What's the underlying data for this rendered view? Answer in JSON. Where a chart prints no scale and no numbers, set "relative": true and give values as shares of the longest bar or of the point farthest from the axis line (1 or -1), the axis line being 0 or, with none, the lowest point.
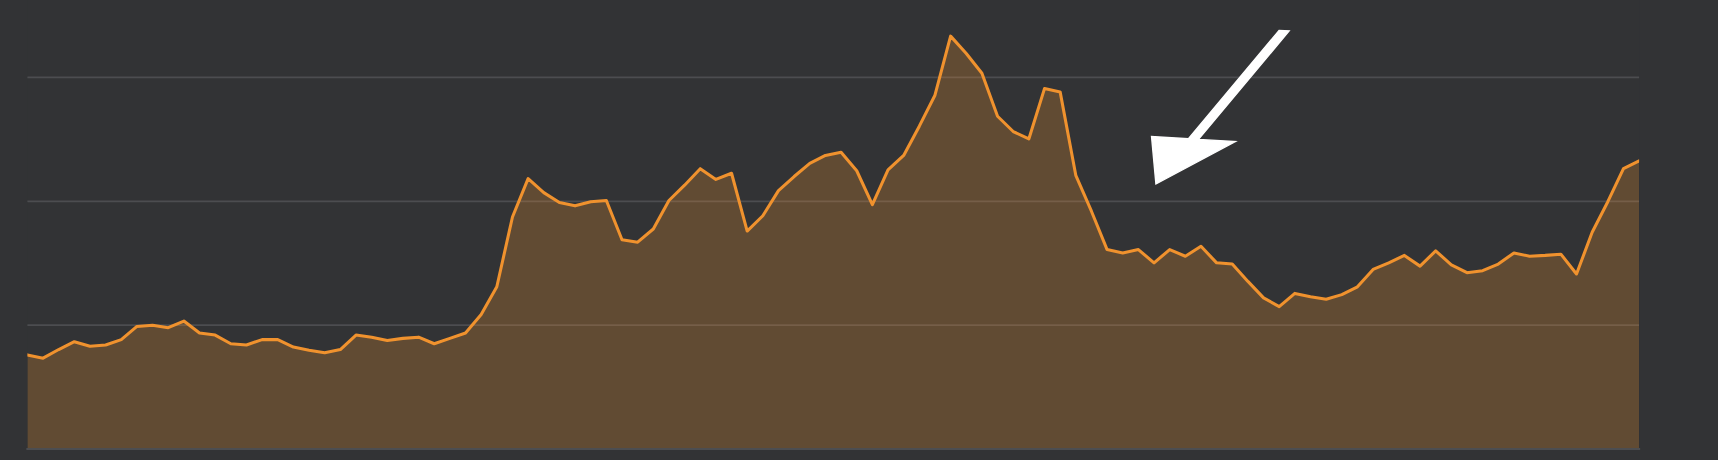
{
  "chart_data": {
    "type": "area",
    "relative": true,
    "grid": "y",
    "categories": [
      null,
      null,
      null,
      null,
      null,
      null,
      null,
      null,
      null,
      null,
      null,
      null,
      null,
      null,
      null,
      null,
      null,
      null,
      null,
      null,
      null,
      null,
      null,
      null,
      null,
      null,
      null,
      null,
      null,
      null,
      null,
      null,
      null,
      null,
      null,
      null,
      null,
      null,
      null,
      null,
      null,
      null,
      null,
      null,
      null,
      null,
      null,
      null,
      null,
      null,
      null,
      null,
      null,
      null,
      null,
      null,
      null,
      null,
      null,
      null,
      null,
      null,
      null,
      null,
      null,
      null,
      null,
      null,
      null,
      null,
      null,
      null,
      null,
      null,
      null,
      null,
      null,
      null,
      null,
      null,
      null,
      null,
      null,
      null,
      null,
      null,
      null,
      null,
      null,
      null,
      null,
      null,
      null,
      null,
      null,
      null,
      null,
      null,
      null,
      null,
      null,
      null,
      null,
      null
    ],
    "series": [
      {
        "color": "#f0922e",
        "values": [
          0.228,
          0.22,
          0.241,
          0.26,
          0.249,
          0.252,
          0.265,
          0.297,
          0.3,
          0.294,
          0.31,
          0.281,
          0.276,
          0.255,
          0.252,
          0.265,
          0.265,
          0.247,
          0.239,
          0.233,
          0.241,
          0.276,
          0.271,
          0.263,
          0.268,
          0.271,
          0.255,
          0.268,
          0.281,
          0.326,
          0.393,
          0.562,
          0.655,
          0.621,
          0.597,
          0.589,
          0.599,
          0.602,
          0.507,
          0.501,
          0.533,
          0.602,
          0.639,
          0.679,
          0.653,
          0.668,
          0.528,
          0.565,
          0.626,
          0.66,
          0.692,
          0.711,
          0.719,
          0.674,
          0.592,
          0.676,
          0.711,
          0.782,
          0.857,
          1,
          0.958,
          0.91,
          0.806,
          0.769,
          0.751,
          0.873,
          0.865,
          0.663,
          0.576,
          0.483,
          0.475,
          0.483,
          0.451,
          0.483,
          0.467,
          0.491,
          0.451,
          0.448,
          0.406,
          0.366,
          0.345,
          0.377,
          0.369,
          0.363,
          0.374,
          0.393,
          0.435,
          0.451,
          0.469,
          0.443,
          0.48,
          0.446,
          0.427,
          0.432,
          0.448,
          0.475,
          0.467,
          0.469,
          0.472,
          0.424,
          0.525,
          0.599,
          0.679,
          0.698
        ]
      }
    ]
  }
}
